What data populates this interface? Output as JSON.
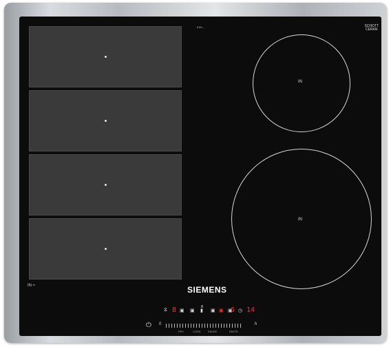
{
  "brand": "SIEMENS",
  "model_code": "EX6...",
  "glass_brand": {
    "line1": "SCHOTT",
    "line2": "CERAN",
    "line3": ""
  },
  "flex_zone": {
    "label": "IN",
    "zones": 4
  },
  "burners": [
    {
      "label": "IN"
    },
    {
      "label": "IN"
    }
  ],
  "controls": {
    "power_symbol": "⏻",
    "display_left": "8",
    "display_mid": "6",
    "display_right": "14",
    "min_label": "0",
    "max_label": "h",
    "slider_labels": [
      "FRY",
      "COOK",
      "PAUSE",
      "PASTE"
    ]
  },
  "colors": {
    "glass": "#0c0c0c",
    "zone": "#3a3a3a",
    "indicator": "#e33"
  }
}
